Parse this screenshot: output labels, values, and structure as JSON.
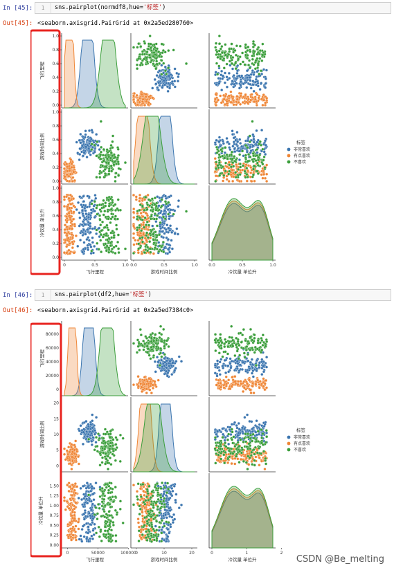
{
  "colors": {
    "blue": "#3b75af",
    "orange": "#ef8636",
    "green": "#3b9e3b",
    "highlight": "#e8231f"
  },
  "cells": [
    {
      "in_prompt": "In  [45]:",
      "line_no": "1",
      "code_prefix": "sns.pairplot(normdf8,hue=",
      "code_string": "'标签'",
      "code_suffix": ")",
      "out_prompt": "Out[45]:",
      "output_text": "<seaborn.axisgrid.PairGrid at 0x2a5ed280760>"
    },
    {
      "in_prompt": "In  [46]:",
      "line_no": "1",
      "code_prefix": "sns.pairplot(df2,hue=",
      "code_string": "'标签'",
      "code_suffix": ")",
      "out_prompt": "Out[46]:",
      "output_text": "<seaborn.axisgrid.PairGrid at 0x2a5ed7384c0>"
    }
  ],
  "chart_data": [
    {
      "type": "scatter",
      "subtype": "pairplot",
      "variables": [
        "飞行里程",
        "游戏时间比例",
        "冷饮量 单位升"
      ],
      "tick_labels": [
        [
          "0.0",
          "0.2",
          "0.4",
          "0.6",
          "0.8",
          "1.0"
        ],
        [
          "0.0",
          "0.2",
          "0.4",
          "0.6",
          "0.8",
          "1.0"
        ],
        [
          "0.0",
          "0.2",
          "0.4",
          "0.6",
          "0.8",
          "1.0"
        ]
      ],
      "x_tick_labels": [
        [
          "0",
          "0.5",
          "1.0"
        ],
        [
          "0.0",
          "0.5",
          "1.0"
        ],
        [
          "0.0",
          "0.5",
          "1.0"
        ]
      ],
      "ranges": [
        [
          0,
          1
        ],
        [
          0,
          1
        ],
        [
          0,
          1
        ]
      ],
      "legend_title": "标签",
      "legend_position": "right",
      "series": [
        {
          "name": "非常喜欢",
          "color": "blue",
          "means": [
            0.38,
            0.52,
            0.5
          ],
          "sds": [
            0.08,
            0.08,
            0.28
          ]
        },
        {
          "name": "有点喜欢",
          "color": "orange",
          "means": [
            0.08,
            0.15,
            0.5
          ],
          "sds": [
            0.05,
            0.08,
            0.28
          ]
        },
        {
          "name": "不喜欢",
          "color": "green",
          "means": [
            0.72,
            0.3,
            0.5
          ],
          "sds": [
            0.1,
            0.12,
            0.28
          ]
        }
      ]
    },
    {
      "type": "scatter",
      "subtype": "pairplot",
      "variables": [
        "飞行里程",
        "游戏时间比例",
        "冷饮量 单位升"
      ],
      "tick_labels": [
        [
          "0",
          "20000",
          "40000",
          "60000",
          "80000"
        ],
        [
          "0",
          "5",
          "10",
          "15",
          "20"
        ],
        [
          "0.00",
          "0.25",
          "0.50",
          "0.75",
          "1.00",
          "1.25",
          "1.50"
        ]
      ],
      "x_tick_labels": [
        [
          "0",
          "50000",
          "100000"
        ],
        [
          "0",
          "10",
          "20"
        ],
        [
          "0",
          "1",
          "2"
        ]
      ],
      "ranges": [
        [
          -5000,
          95000
        ],
        [
          -1,
          21
        ],
        [
          0,
          1.75
        ]
      ],
      "legend_title": "标签",
      "legend_position": "right",
      "series": [
        {
          "name": "非常喜欢",
          "color": "blue",
          "means": [
            35000,
            10.5,
            0.83
          ],
          "sds": [
            7000,
            1.6,
            0.45
          ]
        },
        {
          "name": "有点喜欢",
          "color": "orange",
          "means": [
            8000,
            3.2,
            0.83
          ],
          "sds": [
            4500,
            1.6,
            0.45
          ]
        },
        {
          "name": "不喜欢",
          "color": "green",
          "means": [
            65000,
            6.0,
            0.83
          ],
          "sds": [
            9000,
            2.5,
            0.45
          ]
        }
      ]
    }
  ],
  "watermark": "CSDN @Be_melting"
}
